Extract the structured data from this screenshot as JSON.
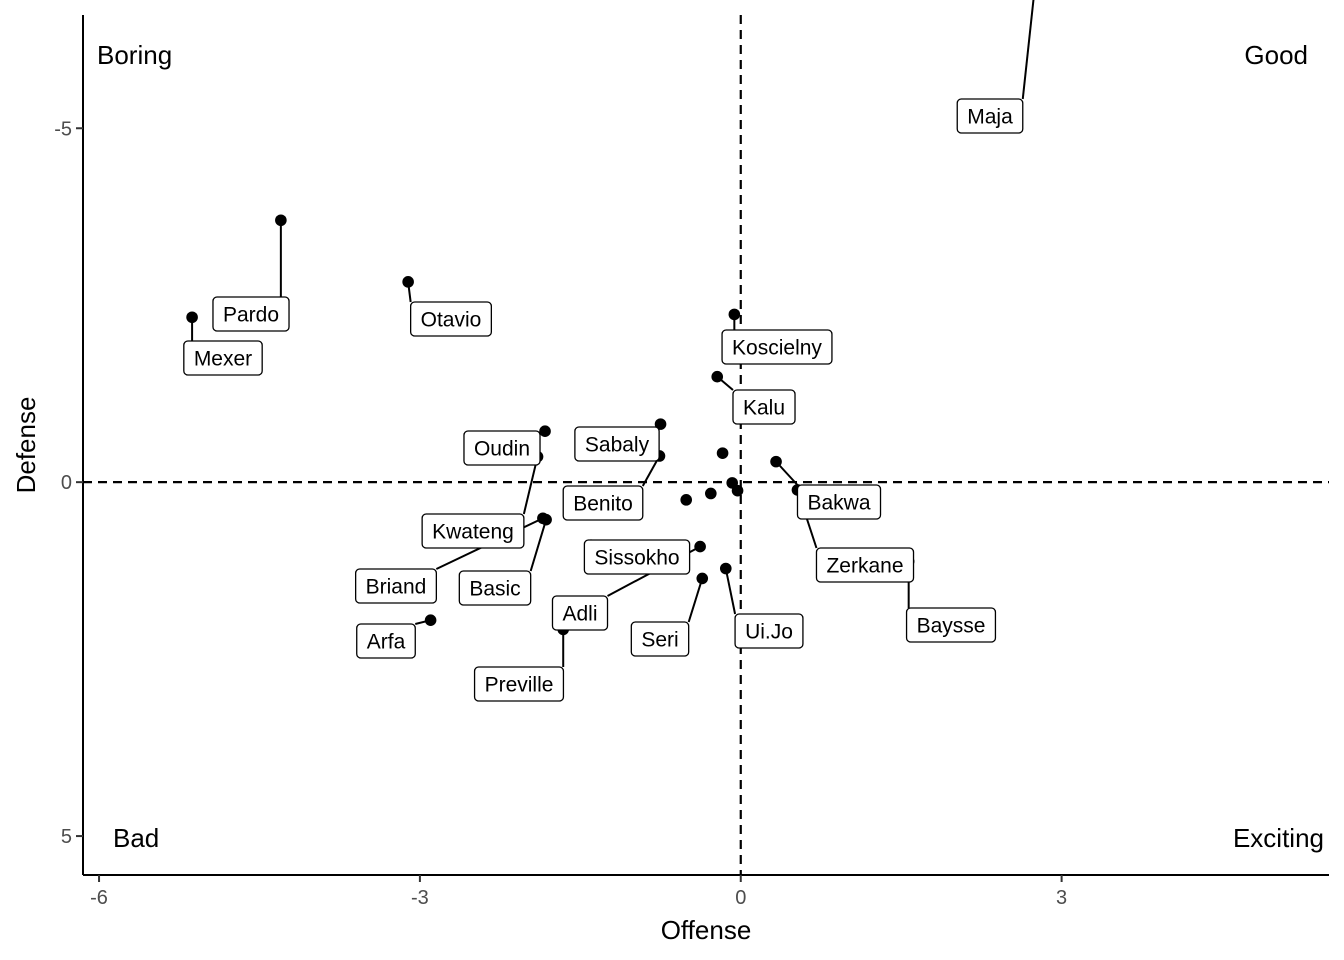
{
  "chart_data": {
    "type": "scatter",
    "title": "",
    "xlabel": "Offense",
    "ylabel": "Defense",
    "xlim": [
      -6.15,
      5.5
    ],
    "ylim": [
      -6.6,
      5.55
    ],
    "y_reversed": true,
    "xticks": [
      -6,
      -3,
      0,
      3
    ],
    "xtick_labels": [
      "-6",
      "-3",
      "0",
      "3"
    ],
    "yticks": [
      -5,
      0,
      5
    ],
    "ytick_labels": [
      "-5",
      "0",
      "5"
    ],
    "reference_lines": {
      "x": 0,
      "y": 0,
      "style": "dashed"
    },
    "grid": false,
    "quadrant_labels": {
      "top_left": "Boring",
      "top_right": "Good",
      "bottom_left": "Bad",
      "bottom_right": "Exciting"
    },
    "points": [
      {
        "label": "Maja",
        "x": 2.75,
        "y": -7.0
      },
      {
        "label": "Pardo",
        "x": -4.3,
        "y": -3.7
      },
      {
        "label": "Mexer",
        "x": -5.13,
        "y": -2.33
      },
      {
        "label": "Otavio",
        "x": -3.11,
        "y": -2.83
      },
      {
        "label": "Koscielny",
        "x": -0.06,
        "y": -2.37
      },
      {
        "label": "Kalu",
        "x": -0.22,
        "y": -1.49
      },
      {
        "label": "Oudin",
        "x": -1.83,
        "y": -0.72
      },
      {
        "label": "Sabaly",
        "x": -0.75,
        "y": -0.82
      },
      {
        "label": "Benito",
        "x": -0.76,
        "y": -0.37
      },
      {
        "label": "Kwateng",
        "x": -1.9,
        "y": -0.36
      },
      {
        "label": "Bakwa",
        "x": 0.33,
        "y": -0.29
      },
      {
        "label": "Briand",
        "x": -1.85,
        "y": 0.51
      },
      {
        "label": "Basic",
        "x": -1.82,
        "y": 0.53
      },
      {
        "label": "Sissokho",
        "x": -1.4,
        "y": 0.89
      },
      {
        "label": "Zerkane",
        "x": 0.53,
        "y": 0.11
      },
      {
        "label": "Baysse",
        "x": 1.57,
        "y": 1.12
      },
      {
        "label": "Adli",
        "x": -0.38,
        "y": 0.91
      },
      {
        "label": "Seri",
        "x": -0.36,
        "y": 1.36
      },
      {
        "label": "Ui.Jo",
        "x": -0.14,
        "y": 1.22
      },
      {
        "label": "Arfa",
        "x": -2.9,
        "y": 1.95
      },
      {
        "label": "Preville",
        "x": -1.66,
        "y": 2.08
      },
      {
        "label": "",
        "x": -0.17,
        "y": -0.41
      },
      {
        "label": "",
        "x": -0.08,
        "y": 0.01
      },
      {
        "label": "",
        "x": -0.03,
        "y": 0.12
      },
      {
        "label": "",
        "x": -0.28,
        "y": 0.16
      },
      {
        "label": "",
        "x": -0.51,
        "y": 0.25
      },
      {
        "label": "",
        "x": 0.6,
        "y": 0.33
      }
    ]
  }
}
